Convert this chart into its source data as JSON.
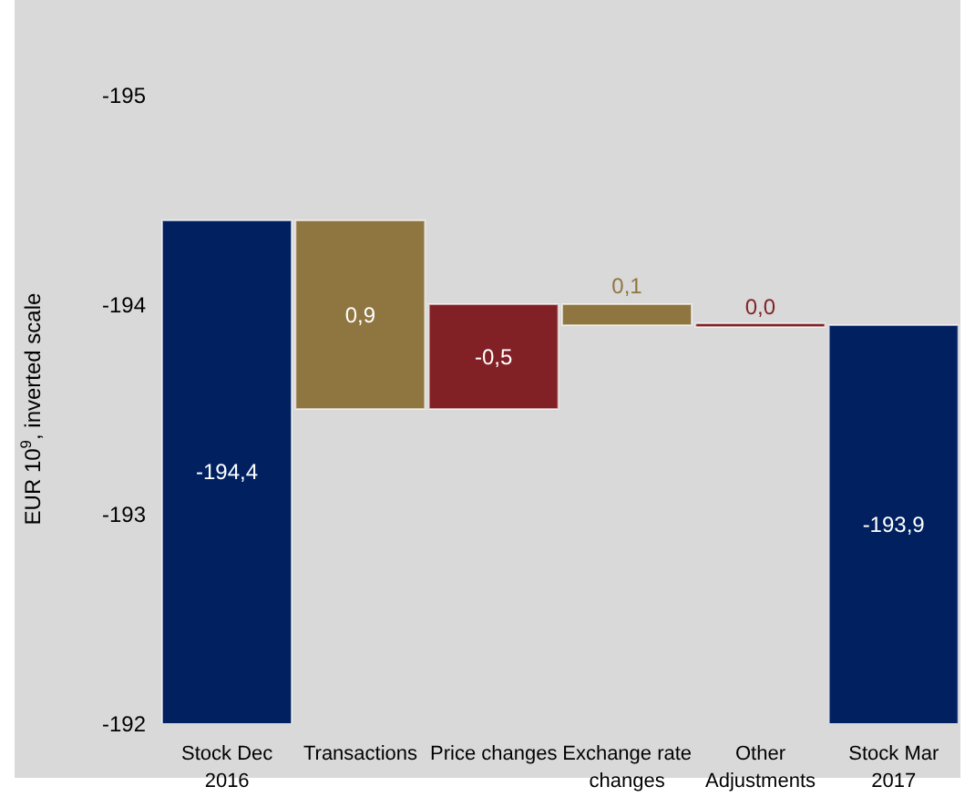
{
  "chart_data": {
    "type": "bar",
    "ylabel": "EUR 10$^{9}$, inverted scale",
    "categories": [
      "Stock Dec 2016",
      "Transactions",
      "Price changes",
      "Exchange rate changes",
      "Other Adjustments",
      "Stock Mar 2017"
    ],
    "values": [
      -194.4,
      0.9,
      -0.5,
      0.1,
      0.0,
      -193.9
    ],
    "base": [
      null,
      -194.4,
      -193.5,
      -194.0,
      -193.9,
      null
    ],
    "colors": [
      "#002060",
      "#8f7540",
      "#822125",
      "#8f7540",
      "#822125",
      "#002060"
    ],
    "value_labels": [
      "-194,4",
      "0,9",
      "-0,5",
      "0,1",
      "0,0",
      "-193,9"
    ],
    "ylim": [
      -192,
      -195
    ],
    "yticks": [
      -195,
      -194,
      -193,
      -192
    ],
    "grid": false
  }
}
